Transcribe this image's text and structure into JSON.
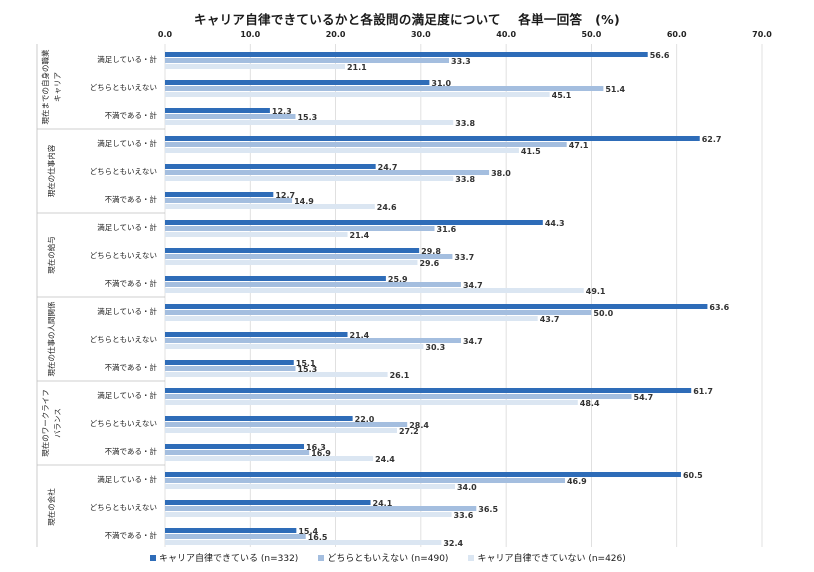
{
  "chart_data": {
    "type": "bar",
    "orientation": "horizontal",
    "title": "キャリア自律できているかと各設問の満足度について　 各単一回答　(%)",
    "xlim": [
      0,
      70
    ],
    "ticks": [
      "0.0",
      "10.0",
      "20.0",
      "30.0",
      "40.0",
      "50.0",
      "60.0",
      "70.0"
    ],
    "grid": true,
    "legend_position": "bottom",
    "colors": [
      "#2e6cb8",
      "#a4bedf",
      "#dbe6f2"
    ],
    "series_names": [
      "キャリア自律できている (n=332)",
      "どちらともいえない (n=490)",
      "キャリア自律できていない (n=426)"
    ],
    "groups": [
      {
        "name": "現在までの自身の職業キャリア",
        "label_lines": [
          "現在までの自身の職業",
          "キャリア"
        ],
        "rows": [
          {
            "label": "満足している・計",
            "values": [
              56.6,
              33.3,
              21.1
            ]
          },
          {
            "label": "どちらともいえない",
            "values": [
              31.0,
              51.4,
              45.1
            ]
          },
          {
            "label": "不満である・計",
            "values": [
              12.3,
              15.3,
              33.8
            ]
          }
        ]
      },
      {
        "name": "現在の仕事内容",
        "label_lines": [
          "現在の仕事内容"
        ],
        "rows": [
          {
            "label": "満足している・計",
            "values": [
              62.7,
              47.1,
              41.5
            ]
          },
          {
            "label": "どちらともいえない",
            "values": [
              24.7,
              38.0,
              33.8
            ]
          },
          {
            "label": "不満である・計",
            "values": [
              12.7,
              14.9,
              24.6
            ]
          }
        ]
      },
      {
        "name": "現在の給与",
        "label_lines": [
          "現在の給与"
        ],
        "rows": [
          {
            "label": "満足している・計",
            "values": [
              44.3,
              31.6,
              21.4
            ]
          },
          {
            "label": "どちらともいえない",
            "values": [
              29.8,
              33.7,
              29.6
            ]
          },
          {
            "label": "不満である・計",
            "values": [
              25.9,
              34.7,
              49.1
            ]
          }
        ]
      },
      {
        "name": "現在の仕事の人間関係",
        "label_lines": [
          "現在の仕事の人間関係"
        ],
        "rows": [
          {
            "label": "満足している・計",
            "values": [
              63.6,
              50.0,
              43.7
            ]
          },
          {
            "label": "どちらともいえない",
            "values": [
              21.4,
              34.7,
              30.3
            ]
          },
          {
            "label": "不満である・計",
            "values": [
              15.1,
              15.3,
              26.1
            ]
          }
        ]
      },
      {
        "name": "現在のワークライフバランス",
        "label_lines": [
          "現在のワークライフ",
          "バランス"
        ],
        "rows": [
          {
            "label": "満足している・計",
            "values": [
              61.7,
              54.7,
              48.4
            ]
          },
          {
            "label": "どちらともいえない",
            "values": [
              22.0,
              28.4,
              27.2
            ]
          },
          {
            "label": "不満である・計",
            "values": [
              16.3,
              16.9,
              24.4
            ]
          }
        ]
      },
      {
        "name": "現在の会社",
        "label_lines": [
          "現在の会社"
        ],
        "rows": [
          {
            "label": "満足している・計",
            "values": [
              60.5,
              46.9,
              34.0
            ]
          },
          {
            "label": "どちらともいえない",
            "values": [
              24.1,
              36.5,
              33.6
            ]
          },
          {
            "label": "不満である・計",
            "values": [
              15.4,
              16.5,
              32.4
            ]
          }
        ]
      }
    ]
  }
}
